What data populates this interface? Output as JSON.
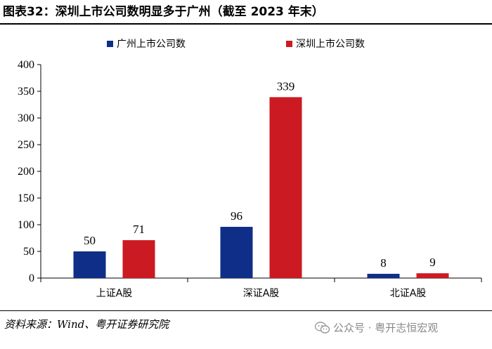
{
  "header": {
    "title": "图表32：深圳上市公司数明显多于广州（截至 2023 年末）"
  },
  "footer": {
    "source": "资料来源：Wind、粤开证券研究院",
    "watermark": "公众号 · 粤开志恒宏观"
  },
  "colors": {
    "guangzhou": "#0e2e87",
    "shenzhen": "#cc1a22"
  },
  "chart_data": {
    "type": "bar",
    "title": "图表32：深圳上市公司数明显多于广州（截至 2023 年末）",
    "xlabel": "",
    "ylabel": "",
    "categories": [
      "上证A股",
      "深证A股",
      "北证A股"
    ],
    "series": [
      {
        "name": "广州上市公司数",
        "values": [
          50,
          96,
          8
        ]
      },
      {
        "name": "深圳上市公司数",
        "values": [
          71,
          339,
          9
        ]
      }
    ],
    "ylim": [
      0,
      400
    ],
    "yticks": [
      "0",
      "50",
      "100",
      "150",
      "200",
      "250",
      "300",
      "350",
      "400"
    ],
    "grid": false,
    "legend": "top-center",
    "data_labels": true
  }
}
